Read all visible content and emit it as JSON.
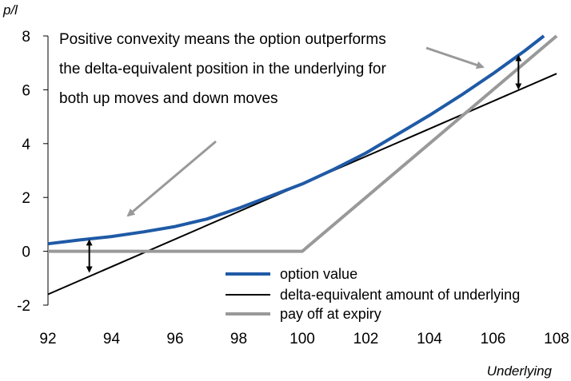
{
  "chart_data": {
    "type": "line",
    "title": "",
    "xlabel": "Underlying",
    "ylabel": "p/l",
    "xlim": [
      92,
      108
    ],
    "ylim": [
      -2,
      8
    ],
    "xticks": [
      92,
      94,
      96,
      98,
      100,
      102,
      104,
      106,
      108
    ],
    "yticks": [
      -2,
      0,
      2,
      4,
      6,
      8
    ],
    "grid": false,
    "legend_position": "bottom-right",
    "series": [
      {
        "name": "option value",
        "color": "#1f5aa6",
        "x": [
          92,
          93,
          94,
          95,
          96,
          97,
          98,
          99,
          100,
          101,
          102,
          103,
          104,
          105,
          106,
          107,
          107.6
        ],
        "y": [
          0.28,
          0.42,
          0.55,
          0.72,
          0.92,
          1.2,
          1.6,
          2.05,
          2.5,
          3.05,
          3.65,
          4.35,
          5.05,
          5.8,
          6.6,
          7.45,
          8.0
        ]
      },
      {
        "name": "delta-equivalent amount of underlying",
        "color": "#000000",
        "x": [
          92,
          108
        ],
        "y": [
          -1.6,
          6.6
        ]
      },
      {
        "name": "pay off at expiry",
        "color": "#999999",
        "x": [
          92,
          100,
          108
        ],
        "y": [
          0,
          0,
          8
        ]
      }
    ],
    "annotations": {
      "text_lines": [
        "Positive convexity means the option outperforms",
        "the delta-equivalent position in the underlying for",
        "both up moves and down moves"
      ]
    }
  }
}
